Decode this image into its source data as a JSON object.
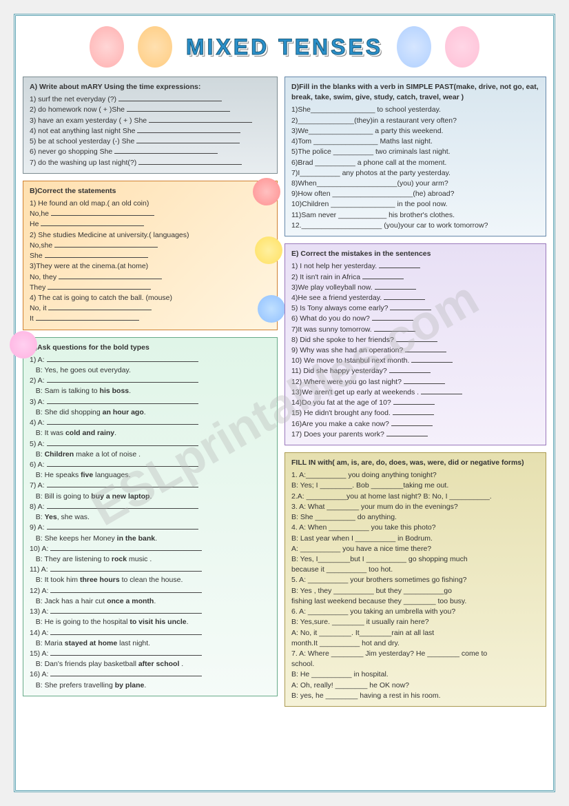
{
  "title": "MIXED TENSES",
  "watermark": "ESLprintables.com",
  "A": {
    "heading": "A) Write about mARY Using the time expressions:",
    "items": [
      "1) surf the net everyday (?)",
      "2) do homework now  ( + )She",
      "3) have an exam yesterday ( + ) She",
      "4) not eat anything last night   She",
      "5) be  at school yesterday (-) She",
      "6) never go shopping    She",
      "7) do the washing up last night(?)"
    ]
  },
  "B": {
    "heading": "B)Correct the statements",
    "items": [
      "1) He found an old map.( an old coin)",
      "No,he",
      "He",
      "2) She studies Medicine at university.( languages)",
      "No,she",
      "She",
      "3)They were at the cinema.(at home)",
      "No, they",
      "They",
      "4) The cat is going to catch the ball.  (mouse)",
      "No, it",
      "It"
    ]
  },
  "C": {
    "heading": "C)Ask questions for the bold types",
    "items": [
      {
        "a": "1) A:",
        "b": "B: Yes, he goes out everyday."
      },
      {
        "a": "2) A:",
        "b": "B:  Sam is talking to <b>his boss</b>."
      },
      {
        "a": "3) A:",
        "b": "B: She did shopping <b>an hour ago</b>."
      },
      {
        "a": "4) A:",
        "b": "B: It was  <b>cold and rainy</b>."
      },
      {
        "a": "5) A:",
        "b": "B: <b>Children</b> make a lot of noise ."
      },
      {
        "a": "6) A:",
        "b": "B: He  speaks <b>five</b> languages."
      },
      {
        "a": "7) A:",
        "b": "B: Bill is going to <b>buy a new laptop</b>."
      },
      {
        "a": "8) A:",
        "b": "B: <b>Yes</b>,  she was."
      },
      {
        "a": "9) A:",
        "b": "B: She keeps her Money <b>in the bank</b>."
      },
      {
        "a": "10) A:",
        "b": "B: They are listening to <b>rock</b> music ."
      },
      {
        "a": "11) A:",
        "b": "B: It took him <b>three hours</b> to clean the house."
      },
      {
        "a": "12) A:",
        "b": "B: Jack has a hair cut <b>once a month</b>."
      },
      {
        "a": "13) A:",
        "b": "B: He is going to the hospital <b>to visit his uncle</b>."
      },
      {
        "a": "14) A:",
        "b": "B: Maria <b>stayed at home</b>  last night."
      },
      {
        "a": "15) A:",
        "b": "B: Dan's friends play basketball <b>after school</b> ."
      },
      {
        "a": "16) A:",
        "b": "B: She  prefers travelling <b>by plane</b>."
      }
    ]
  },
  "D": {
    "heading": "D)Fill in the blanks with a verb in SIMPLE PAST(make,  drive, not go,  eat, break,  take, swim, give,  study, catch,  travel, wear )",
    "items": [
      "1)She________________ to school yesterday.",
      "2)______________(they)in a restaurant very often?",
      "3)We________________ a party this weekend.",
      "4)Tom ________________ Maths last night.",
      "5)The police __________ two criminals last night.",
      "6)Brad __________ a phone call at the moment.",
      "7)I__________ any photos at the party yesterday.",
      "8)When____________________(you) your arm?",
      "9)How often ____________________(he) abroad?",
      "10)Children ________________ in the pool now.",
      "11)Sam never ____________ his brother's clothes.",
      "12.____________________ (you)your car to work tomorrow?"
    ]
  },
  "E": {
    "heading": "E) Correct the mistakes in the sentences",
    "items": [
      "1) I not help her yesterday.",
      "2) It isn't rain in Africa",
      "3)We  play volleyball now.",
      "4)He see a friend yesterday.",
      "5) Is Tony always  come early?",
      "6) What  do you do now?",
      "7)It  was sunny tomorrow.",
      "8) Did she  spoke to her friends?",
      "9) Why was she  had an operation?",
      "10) We move to Istanbul next month.",
      "11) Did she  happy yesterday?",
      "12) Where were you go last night?",
      "13)We aren't get up early at weekends .",
      "14)Do you  fat at the age of 10?",
      "15) He didn't brought any food.",
      "16)Are you make a cake now?",
      "17) Does your parents work?"
    ]
  },
  "F": {
    "heading": "FILL IN with( am, is, are, do, does, was, were, did or negative forms)",
    "items": [
      "1. A:__________ you doing anything tonight?",
      "    B: Yes; I ________. Bob ________taking me out.",
      "2.A: __________you at home last night? B: No, I __________.",
      "3. A: What ________ your mum do in the evenings?",
      "    B: She __________ do anything.",
      "4. A: When __________ you take this photo?",
      "    B: Last year when I __________ in Bodrum.",
      "    A: __________ you have a nice time there?",
      "    B: Yes, I________but I __________ go shopping much",
      "    because  it __________ too hot.",
      "5. A: __________ your brothers sometimes go fishing?",
      "    B: Yes , they __________ but they __________go",
      "    fishing last  weekend  because they ________ too busy.",
      "6. A: __________ you taking an umbrella with you?",
      "    B: Yes,sure. ________ it usually rain here?",
      "    A: No, it ________. It________rain at all last",
      "    month.It __________ hot and dry.",
      "7. A: Where ________ Jim yesterday? He ________ come to",
      "    school.",
      "    B: He __________ in hospital.",
      "    A: Oh, really! ________ he OK now?",
      "    B: yes, he ________ having a rest in his room."
    ]
  }
}
